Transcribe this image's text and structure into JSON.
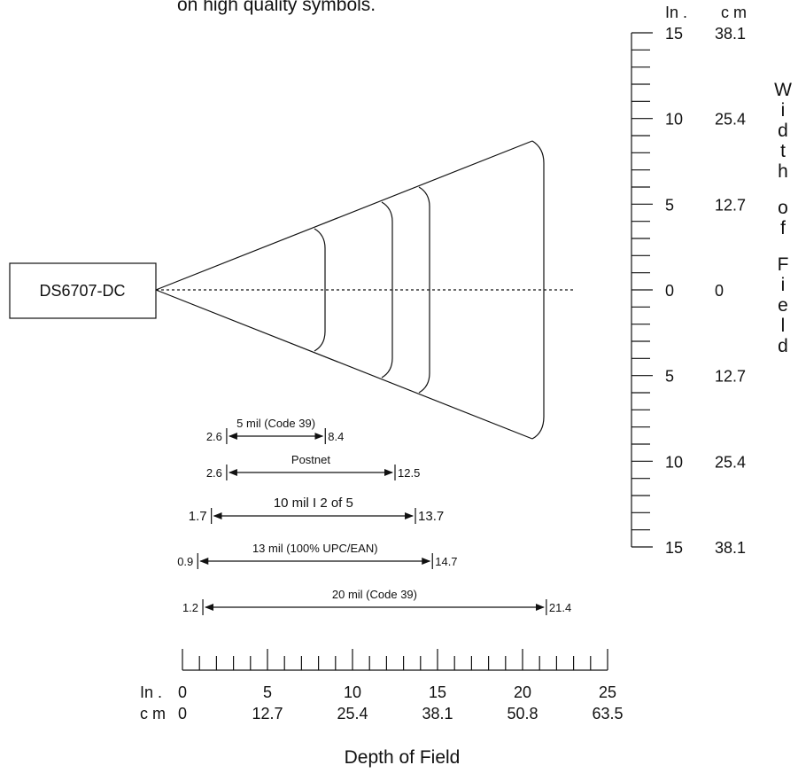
{
  "top_note": "on high quality symbols.",
  "scanner_label": "DS6707-DC",
  "width_scale": {
    "unit_in": "In .",
    "unit_cm": "c m",
    "ticks": [
      {
        "in": "15",
        "cm": "38.1"
      },
      {
        "in": "10",
        "cm": "25.4"
      },
      {
        "in": "5",
        "cm": "12.7"
      },
      {
        "in": "0",
        "cm": "0"
      },
      {
        "in": "5",
        "cm": "12.7"
      },
      {
        "in": "10",
        "cm": "25.4"
      },
      {
        "in": "15",
        "cm": "38.1"
      }
    ],
    "vertical_title": "Width of Field"
  },
  "depth_scale": {
    "unit_in": "In .",
    "unit_cm": "c m",
    "in_labels": [
      "0",
      "5",
      "10",
      "15",
      "20",
      "25"
    ],
    "cm_labels": [
      "0",
      "12.7",
      "25.4",
      "38.1",
      "50.8",
      "63.5"
    ],
    "title": "Depth of Field"
  },
  "ranges": [
    {
      "label": "5 mil (Code 39)",
      "start": "2.6",
      "end": "8.4"
    },
    {
      "label": "Postnet",
      "start": "2.6",
      "end": "12.5"
    },
    {
      "label": "10 mil I 2 of 5",
      "start": "1.7",
      "end": "13.7"
    },
    {
      "label": "13 mil (100% UPC/EAN)",
      "start": "0.9",
      "end": "14.7"
    },
    {
      "label": "20 mil (Code 39)",
      "start": "1.2",
      "end": "21.4"
    }
  ]
}
